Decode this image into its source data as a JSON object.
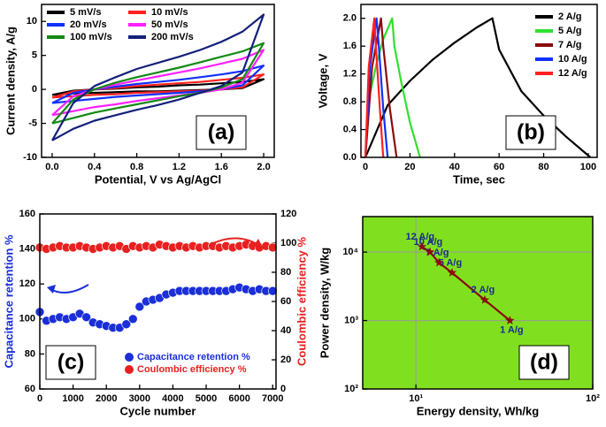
{
  "chart_data": [
    {
      "type": "line",
      "xlabel": "Potential, V vs Ag/AgCl",
      "ylabel": "Current density, A/g",
      "label": "(a)",
      "x": [
        0,
        0.2,
        0.4,
        0.6,
        0.8,
        1.0,
        1.2,
        1.4,
        1.6,
        1.8,
        2.0,
        1.8,
        1.6,
        1.4,
        1.2,
        1.0,
        0.8,
        0.6,
        0.4,
        0.2,
        0
      ],
      "series": [
        {
          "name": "5 mV/s",
          "color": "#000000",
          "values": [
            -0.8,
            -0.2,
            0,
            0.1,
            0.3,
            0.4,
            0.6,
            0.7,
            0.9,
            1.1,
            1.5,
            0.2,
            0,
            -0.1,
            -0.2,
            -0.3,
            -0.3,
            -0.4,
            -0.5,
            -0.6,
            -0.8
          ]
        },
        {
          "name": "10 mV/s",
          "color": "#ff2020",
          "values": [
            -1.2,
            -0.3,
            0,
            0.2,
            0.5,
            0.7,
            0.9,
            1.1,
            1.4,
            1.7,
            2.2,
            0.3,
            0,
            -0.2,
            -0.3,
            -0.4,
            -0.5,
            -0.7,
            -0.8,
            -1,
            -1.2
          ]
        },
        {
          "name": "20 mV/s",
          "color": "#1030ff",
          "values": [
            -2,
            -0.5,
            0,
            0.4,
            0.8,
            1.1,
            1.4,
            1.8,
            2.2,
            2.7,
            3.5,
            0.6,
            0,
            -0.3,
            -0.5,
            -0.7,
            -0.9,
            -1.1,
            -1.4,
            -1.7,
            -2
          ]
        },
        {
          "name": "50 mV/s",
          "color": "#ff20ff",
          "values": [
            -3.8,
            -1,
            0,
            0.7,
            1.3,
            1.9,
            2.5,
            3.1,
            3.8,
            4.5,
            5.8,
            1,
            0,
            -0.5,
            -0.9,
            -1.3,
            -1.7,
            -2.2,
            -2.6,
            -3.2,
            -3.8
          ]
        },
        {
          "name": "100 mV/s",
          "color": "#138a13",
          "values": [
            -5,
            -1.5,
            0,
            1,
            1.8,
            2.5,
            3.2,
            4,
            4.8,
            5.6,
            6.8,
            1.5,
            0.3,
            -0.5,
            -1,
            -1.6,
            -2.2,
            -2.8,
            -3.4,
            -4.2,
            -5
          ]
        },
        {
          "name": "200 mV/s",
          "color": "#14207a",
          "values": [
            -7.5,
            -2,
            0.5,
            1.8,
            3,
            3.9,
            4.8,
            5.8,
            7,
            8.5,
            11,
            2.5,
            0.5,
            -0.5,
            -1.5,
            -2.3,
            -3,
            -3.8,
            -4.6,
            -5.8,
            -7.5
          ]
        }
      ],
      "xlim": [
        -0.1,
        2.1
      ],
      "xticks": [
        {
          "value": 0,
          "label": "0.0"
        },
        0.4,
        0.8,
        1.2,
        1.6,
        {
          "value": 2,
          "label": "2.0"
        }
      ],
      "ylim": [
        -10,
        12.5
      ],
      "yticks": [
        -10,
        -5,
        0,
        5,
        10
      ],
      "legend": "upper left",
      "legend_columns": 2
    },
    {
      "type": "line",
      "xlabel": "Time, sec",
      "ylabel": "Voltage, V",
      "label": "(b)",
      "series": [
        {
          "name": "2 A/g",
          "color": "#000000",
          "x": [
            0,
            10,
            20,
            30,
            40,
            50,
            57,
            60,
            70,
            80,
            90,
            101
          ],
          "values": [
            0,
            0.75,
            1.1,
            1.4,
            1.65,
            1.87,
            2.0,
            1.55,
            0.95,
            0.6,
            0.3,
            0
          ]
        },
        {
          "name": "5 A/g",
          "color": "#30e030",
          "x": [
            0,
            2,
            5,
            8,
            12,
            13,
            16,
            20,
            24.5
          ],
          "values": [
            0,
            0.9,
            1.35,
            1.7,
            2.0,
            1.6,
            1.1,
            0.5,
            0
          ]
        },
        {
          "name": "7 A/g",
          "color": "#8b0a0a",
          "x": [
            0,
            3,
            7,
            8,
            11,
            14
          ],
          "values": [
            0,
            1.3,
            2,
            1.6,
            0.7,
            0
          ]
        },
        {
          "name": "10 A/g",
          "color": "#1030ff",
          "x": [
            0,
            2,
            5,
            6,
            8,
            10
          ],
          "values": [
            0,
            1.3,
            2,
            1.6,
            0.7,
            0
          ]
        },
        {
          "name": "12 A/g",
          "color": "#ff2020",
          "x": [
            0,
            1.5,
            4,
            4.7,
            6.5,
            8
          ],
          "values": [
            0,
            1.3,
            2,
            1.6,
            0.7,
            0
          ]
        }
      ],
      "xlim": [
        -2,
        104
      ],
      "xticks": [
        0,
        20,
        40,
        60,
        80,
        100
      ],
      "ylim": [
        0,
        2.2
      ],
      "yticks": [
        {
          "value": 0,
          "label": "0.0"
        },
        0.4,
        0.8,
        1.2,
        1.6,
        {
          "value": 2,
          "label": "2.0"
        }
      ],
      "legend": "upper right"
    },
    {
      "type": "scatter",
      "xlabel": "Cycle number",
      "ylabel": "Capacitance retention %",
      "y2label": "Coulombic efficiency %",
      "label": "(c)",
      "x": [
        0,
        200,
        400,
        600,
        800,
        1000,
        1200,
        1400,
        1600,
        1800,
        2000,
        2200,
        2400,
        2600,
        2800,
        3000,
        3200,
        3400,
        3600,
        3800,
        4000,
        4200,
        4400,
        4600,
        4800,
        5000,
        5200,
        5400,
        5600,
        5800,
        6000,
        6200,
        6400,
        6600,
        6800,
        7000
      ],
      "series": [
        {
          "name": "Capacitance retention %",
          "color": "#1a2fd8",
          "values": [
            104,
            99,
            100,
            101,
            100,
            101,
            103,
            101,
            98,
            97,
            96,
            95,
            95,
            97,
            100,
            107,
            110,
            111,
            112,
            114,
            115,
            116,
            116,
            116,
            116,
            116,
            116,
            116,
            116,
            117,
            118,
            117,
            116,
            117,
            116,
            116
          ]
        },
        {
          "name": "Coulombic efficiency   %",
          "color": "#e82020",
          "axis": "y2",
          "values": [
            97,
            96,
            97,
            98,
            97,
            97,
            98,
            97,
            96,
            97,
            98,
            97,
            98,
            96,
            98,
            97,
            98,
            97,
            99,
            98,
            97,
            98,
            97,
            98,
            97,
            98,
            98,
            97,
            98,
            97,
            98,
            99,
            98,
            97,
            98,
            97
          ]
        }
      ],
      "xlim": [
        0,
        7100
      ],
      "xticks": [
        0,
        1000,
        2000,
        3000,
        4000,
        5000,
        6000,
        7000
      ],
      "ylim": [
        60,
        160
      ],
      "yticks": [
        60,
        80,
        100,
        120,
        140,
        160
      ],
      "y2lim": [
        0,
        120
      ],
      "y2ticks": [
        0,
        20,
        40,
        60,
        80,
        100,
        120
      ],
      "legend": "lower right"
    },
    {
      "type": "line",
      "marker": "star",
      "xlabel": "Energy density, Wh/kg",
      "ylabel": "Power density, W/kg",
      "label": "(d)",
      "x": [
        34,
        24.5,
        16,
        13.5,
        12,
        10.8
      ],
      "series": [
        {
          "color": "#8b0a0a",
          "values": [
            1000,
            2000,
            5000,
            7000,
            10000,
            12000
          ],
          "point_labels": [
            "1 A/g",
            "2 A/g",
            "5 A/g",
            "7 A/g",
            "10 A/g",
            "12 A/g"
          ]
        }
      ],
      "xlog": true,
      "ylog": true,
      "grid": true,
      "background": "#80e020",
      "xlim": [
        5,
        100
      ],
      "xticks": [
        {
          "value": 10,
          "label": "10¹"
        },
        {
          "value": 100,
          "label": "10²"
        }
      ],
      "ylim": [
        100,
        33000
      ],
      "yticks": [
        {
          "value": 100,
          "label": "10²"
        },
        {
          "value": 1000,
          "label": "10³"
        },
        {
          "value": 10000,
          "label": "10⁴"
        }
      ]
    }
  ]
}
